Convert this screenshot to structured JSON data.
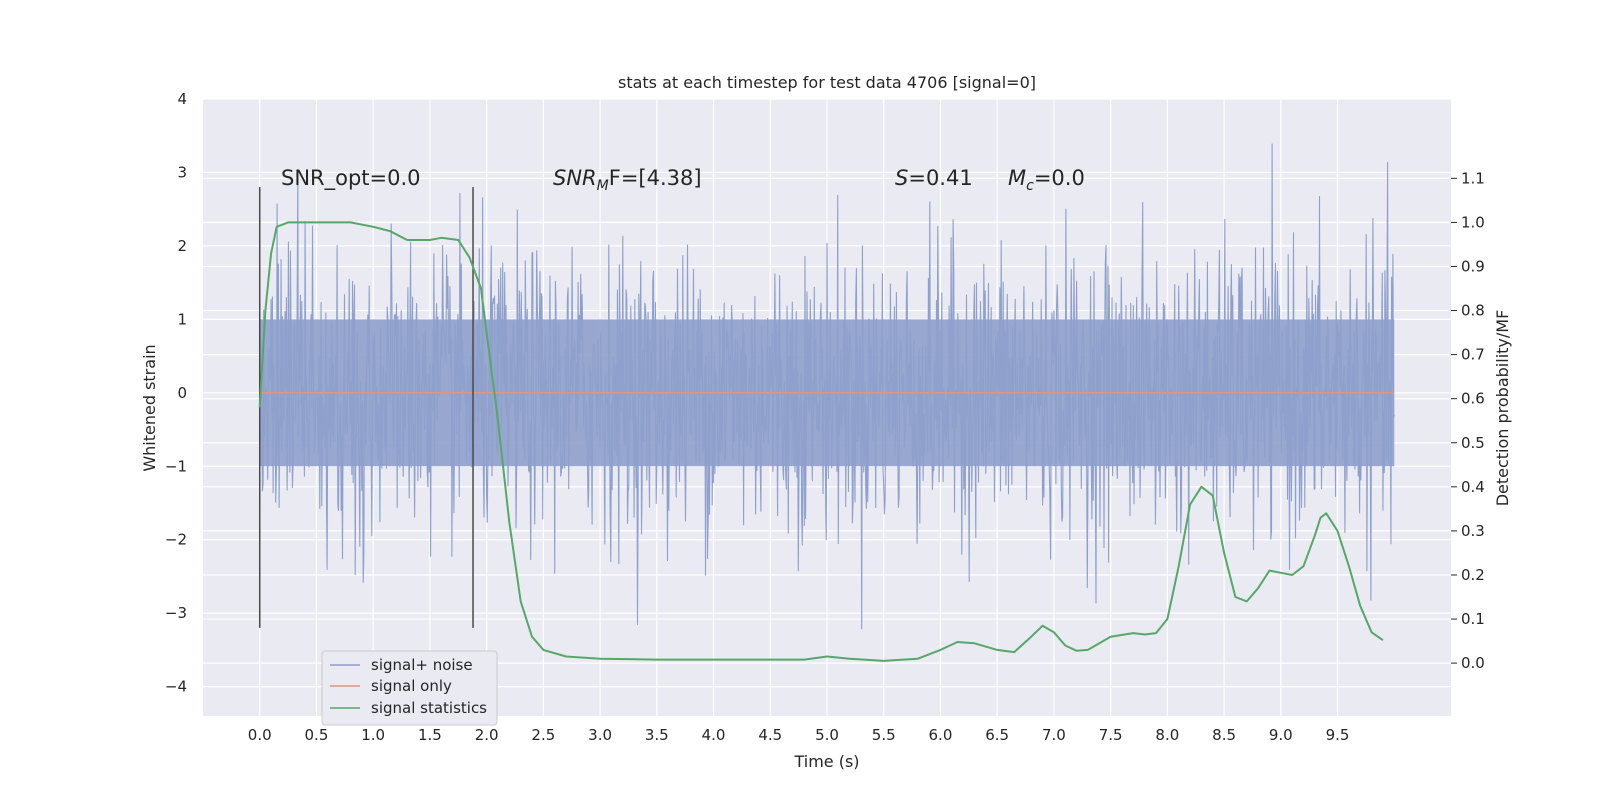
{
  "chart_data": {
    "type": "line",
    "title": "stats at each timestep for test data 4706 [signal=0]",
    "xlabel": "Time (s)",
    "ylabel": "Whitened strain",
    "y2label": "Detection probability/MF",
    "xlim": [
      -0.5,
      10.5
    ],
    "ylim": [
      -4.4,
      4.0
    ],
    "y2lim": [
      -0.12,
      1.28
    ],
    "x_ticks": [
      "0.0",
      "0.5",
      "1.0",
      "1.5",
      "2.0",
      "2.5",
      "3.0",
      "3.5",
      "4.0",
      "4.5",
      "5.0",
      "5.5",
      "6.0",
      "6.5",
      "7.0",
      "7.5",
      "8.0",
      "8.5",
      "9.0",
      "9.5"
    ],
    "y_ticks": [
      "−4",
      "−3",
      "−2",
      "−1",
      "0",
      "1",
      "2",
      "3",
      "4"
    ],
    "y2_ticks": [
      "0.0",
      "0.1",
      "0.2",
      "0.3",
      "0.4",
      "0.5",
      "0.6",
      "0.7",
      "0.8",
      "0.9",
      "1.0",
      "1.1"
    ],
    "grid": true,
    "legend_position": "lower-left",
    "annotations": {
      "snr_opt": "SNR_opt=0.0",
      "snr_mf_main": "SNR",
      "snr_mf_sub": "M",
      "snr_mf_rest": "F=[4.38]",
      "s_main": "S",
      "s_rest": "=0.41",
      "mc_main": "M",
      "mc_sub": "c",
      "mc_rest": "=0.0"
    },
    "vlines_x": [
      0.0,
      1.88
    ],
    "vlines_y": [
      -3.2,
      2.8
    ],
    "series": [
      {
        "name": "signal+ noise",
        "color": "#8ea0cb",
        "x_range": [
          0.0,
          10.0
        ],
        "core_band": [
          -1.0,
          1.0
        ],
        "envelope": [
          -3.6,
          3.5
        ]
      },
      {
        "name": "signal only",
        "color": "#e0957f",
        "x": [
          0.0,
          10.0
        ],
        "y": [
          0.0,
          0.0
        ]
      },
      {
        "name": "signal statistics",
        "color": "#55a868",
        "axis": "right",
        "x": [
          0.0,
          0.05,
          0.1,
          0.15,
          0.25,
          0.4,
          0.6,
          0.8,
          1.0,
          1.15,
          1.3,
          1.4,
          1.5,
          1.6,
          1.75,
          1.85,
          1.95,
          2.0,
          2.1,
          2.2,
          2.3,
          2.4,
          2.5,
          2.7,
          3.0,
          3.5,
          4.0,
          4.5,
          4.8,
          5.0,
          5.2,
          5.5,
          5.8,
          6.0,
          6.15,
          6.3,
          6.5,
          6.65,
          6.8,
          6.9,
          7.0,
          7.1,
          7.2,
          7.3,
          7.5,
          7.7,
          7.8,
          7.9,
          8.0,
          8.1,
          8.2,
          8.3,
          8.4,
          8.5,
          8.6,
          8.7,
          8.8,
          8.9,
          9.0,
          9.1,
          9.2,
          9.3,
          9.35,
          9.4,
          9.5,
          9.6,
          9.7,
          9.8,
          9.9
        ],
        "y": [
          0.58,
          0.8,
          0.93,
          0.99,
          1.0,
          1.0,
          1.0,
          1.0,
          0.99,
          0.98,
          0.96,
          0.96,
          0.96,
          0.965,
          0.96,
          0.92,
          0.85,
          0.75,
          0.55,
          0.32,
          0.14,
          0.06,
          0.03,
          0.015,
          0.01,
          0.008,
          0.008,
          0.008,
          0.008,
          0.015,
          0.01,
          0.005,
          0.01,
          0.03,
          0.048,
          0.045,
          0.03,
          0.025,
          0.06,
          0.085,
          0.07,
          0.04,
          0.028,
          0.03,
          0.06,
          0.068,
          0.065,
          0.068,
          0.1,
          0.22,
          0.36,
          0.4,
          0.38,
          0.25,
          0.15,
          0.14,
          0.17,
          0.21,
          0.205,
          0.2,
          0.22,
          0.29,
          0.33,
          0.34,
          0.3,
          0.22,
          0.13,
          0.07,
          0.052
        ]
      }
    ]
  }
}
